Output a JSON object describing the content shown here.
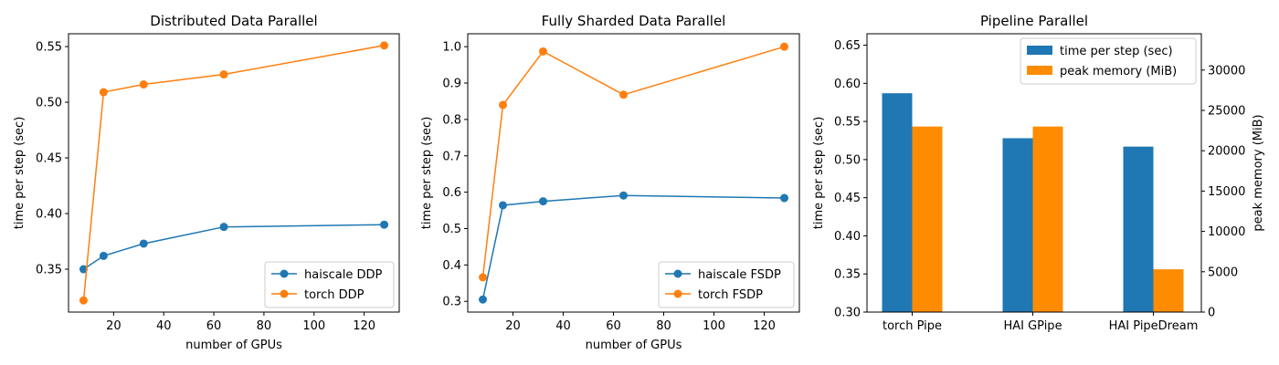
{
  "colors": {
    "blue": "#1f77b4",
    "orange": "#ff7f0e",
    "bar_orange": "#ff8c00"
  },
  "chart_data": [
    {
      "type": "line",
      "title": "Distributed Data Parallel",
      "xlabel": "number of GPUs",
      "ylabel": "time per step (sec)",
      "xlim": [
        2,
        134
      ],
      "ylim": [
        0.3115,
        0.5615
      ],
      "xticks": [
        20,
        40,
        60,
        80,
        100,
        120
      ],
      "yticks": [
        0.35,
        0.4,
        0.45,
        0.5,
        0.55
      ],
      "legend_position": "lower-right",
      "series": [
        {
          "name": "haiscale DDP",
          "color": "#1f77b4",
          "x": [
            8,
            16,
            32,
            64,
            128
          ],
          "y": [
            0.35,
            0.362,
            0.373,
            0.388,
            0.39
          ]
        },
        {
          "name": "torch DDP",
          "color": "#ff7f0e",
          "x": [
            8,
            16,
            32,
            64,
            128
          ],
          "y": [
            0.322,
            0.509,
            0.516,
            0.525,
            0.551
          ]
        }
      ]
    },
    {
      "type": "line",
      "title": "Fully Sharded Data Parallel",
      "xlabel": "number of GPUs",
      "ylabel": "time per step (sec)",
      "xlim": [
        2,
        134
      ],
      "ylim": [
        0.2705,
        1.0355
      ],
      "xticks": [
        20,
        40,
        60,
        80,
        100,
        120
      ],
      "yticks": [
        0.3,
        0.4,
        0.5,
        0.6,
        0.7,
        0.8,
        0.9,
        1.0
      ],
      "legend_position": "lower-right",
      "series": [
        {
          "name": "haiscale FSDP",
          "color": "#1f77b4",
          "x": [
            8,
            16,
            32,
            64,
            128
          ],
          "y": [
            0.305,
            0.564,
            0.575,
            0.591,
            0.584
          ]
        },
        {
          "name": "torch FSDP",
          "color": "#ff7f0e",
          "x": [
            8,
            16,
            32,
            64,
            128
          ],
          "y": [
            0.366,
            0.84,
            0.987,
            0.868,
            1.0
          ]
        }
      ]
    },
    {
      "type": "bar",
      "title": "Pipeline Parallel",
      "categories": [
        "torch Pipe",
        "HAI GPipe",
        "HAI PipeDream"
      ],
      "ylabel": "time per step (sec)",
      "ylabel_right": "peak memory (MiB)",
      "ylim": [
        0.3,
        0.665
      ],
      "ylim_right": [
        0,
        34500
      ],
      "yticks": [
        0.3,
        0.35,
        0.4,
        0.45,
        0.5,
        0.55,
        0.6,
        0.65
      ],
      "yticks_right": [
        0,
        5000,
        10000,
        15000,
        20000,
        25000,
        30000
      ],
      "legend_position": "top-right",
      "series": [
        {
          "name": "time per step (sec)",
          "color": "#1f77b4",
          "axis": "left",
          "values": [
            0.587,
            0.528,
            0.517
          ]
        },
        {
          "name": "peak memory (MiB)",
          "color": "#ff8c00",
          "axis": "right",
          "values": [
            23000,
            23000,
            5300
          ]
        }
      ]
    }
  ]
}
